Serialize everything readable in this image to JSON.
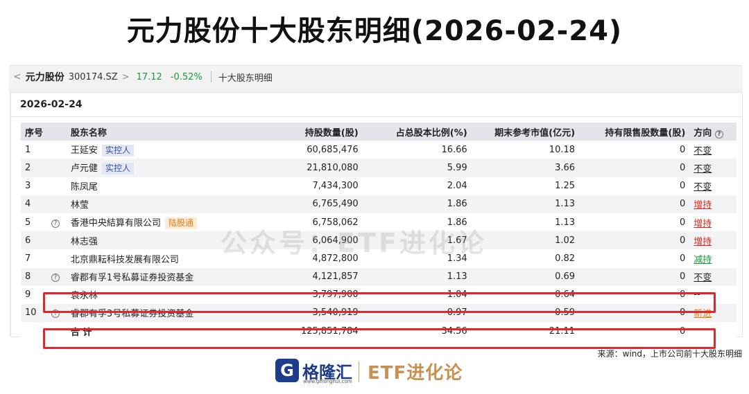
{
  "page_title": "元力股份十大股东明细(2026-02-24)",
  "topbar": {
    "back_chevron": "<",
    "stock_name": "元力股份",
    "stock_code": "300174.SZ",
    "forward_chevron": ">",
    "price": "17.12",
    "change": "-0.52%",
    "section": "十大股东明细"
  },
  "date": "2026-02-24",
  "table": {
    "headers": {
      "idx": "序号",
      "name": "股东名称",
      "shares": "持股数量(股)",
      "pct": "占总股本比例(%)",
      "market_value": "期末参考市值(亿元)",
      "restricted": "持有限售股数量(股)",
      "direction": "方向"
    },
    "rows": [
      {
        "idx": "1",
        "icon": "",
        "name": "王延安",
        "tag": "实控人",
        "shares": "60,685,476",
        "pct": "16.66",
        "mv": "10.18",
        "restricted": "0",
        "direction": "不变"
      },
      {
        "idx": "2",
        "icon": "",
        "name": "卢元健",
        "tag": "实控人",
        "shares": "21,810,080",
        "pct": "5.99",
        "mv": "3.66",
        "restricted": "0",
        "direction": "不变"
      },
      {
        "idx": "3",
        "icon": "",
        "name": "陈凤尾",
        "tag": "",
        "shares": "7,434,300",
        "pct": "2.04",
        "mv": "1.25",
        "restricted": "0",
        "direction": "不变"
      },
      {
        "idx": "4",
        "icon": "",
        "name": "林莹",
        "tag": "",
        "shares": "6,765,490",
        "pct": "1.86",
        "mv": "1.13",
        "restricted": "0",
        "direction": "增持"
      },
      {
        "idx": "5",
        "icon": "?",
        "name": "香港中央結算有限公司",
        "tag": "陆股通",
        "shares": "6,758,062",
        "pct": "1.86",
        "mv": "1.13",
        "restricted": "0",
        "direction": "增持"
      },
      {
        "idx": "6",
        "icon": "",
        "name": "林志强",
        "tag": "",
        "shares": "6,064,900",
        "pct": "1.67",
        "mv": "1.02",
        "restricted": "0",
        "direction": "增持"
      },
      {
        "idx": "7",
        "icon": "",
        "name": "北京鼎耘科技发展有限公司",
        "tag": "",
        "shares": "4,872,800",
        "pct": "1.34",
        "mv": "0.82",
        "restricted": "0",
        "direction": "减持"
      },
      {
        "idx": "8",
        "icon": "?",
        "name": "睿郡有孚1号私募证券投资基金",
        "tag": "",
        "shares": "4,121,857",
        "pct": "1.13",
        "mv": "0.69",
        "restricted": "0",
        "direction": "不变"
      },
      {
        "idx": "9",
        "icon": "",
        "name": "袁永林",
        "tag": "",
        "shares": "3,797,900",
        "pct": "1.04",
        "mv": "0.64",
        "restricted": "0",
        "direction": "--"
      },
      {
        "idx": "10",
        "icon": "?",
        "name": "睿郡有孚3号私募证券投资基金",
        "tag": "",
        "shares": "3,540,919",
        "pct": "0.97",
        "mv": "0.59",
        "restricted": "0",
        "direction": "新进"
      }
    ],
    "total": {
      "label": "合 计",
      "shares": "125,851,784",
      "pct": "34.56",
      "mv": "21.11",
      "restricted": "0"
    }
  },
  "watermark": "公众号：ETF进化论",
  "source": "来源：wind，上市公司前十大股东明细",
  "brand": {
    "logo_letter": "G",
    "name": "格隆汇",
    "url": "www.gelonghui.com",
    "right": "ETF进化论"
  },
  "colors": {
    "up": "#e1261c",
    "down": "#1a9a3a",
    "new": "#e87a10",
    "highlight": "#e1262d"
  }
}
